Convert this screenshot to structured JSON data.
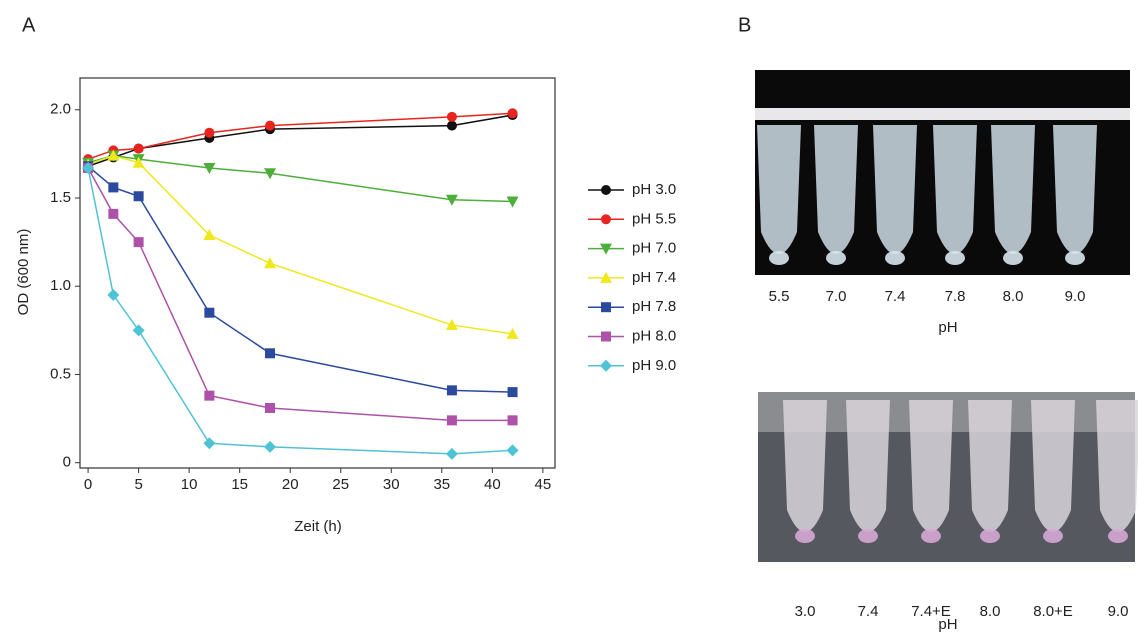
{
  "panel_labels": [
    "A",
    "B"
  ],
  "chart_data": {
    "type": "line",
    "x_label": "Zeit (h)",
    "y_label": "OD (600 nm)",
    "x": [
      0,
      2.5,
      5,
      12,
      18,
      36,
      42
    ],
    "xlim": [
      -0.8,
      46.2
    ],
    "xticks": [
      0,
      5,
      10,
      15,
      20,
      25,
      30,
      35,
      40,
      45
    ],
    "ylim": [
      -0.03,
      2.18
    ],
    "yticks": [
      0,
      0.5,
      {
        "value": 1,
        "label": "1.0"
      },
      1.5,
      {
        "value": 2,
        "label": "2.0"
      }
    ],
    "legend": "right",
    "series": [
      {
        "name": "pH 3.0",
        "color": "#111111",
        "marker": "circle",
        "values": [
          1.68,
          1.73,
          1.78,
          1.84,
          1.89,
          1.91,
          1.97
        ]
      },
      {
        "name": "pH 5.5",
        "color": "#e8241f",
        "marker": "circle",
        "values": [
          1.72,
          1.77,
          1.78,
          1.87,
          1.91,
          1.96,
          1.98
        ]
      },
      {
        "name": "pH 7.0",
        "color": "#4daf3a",
        "marker": "triangle-down",
        "values": [
          1.7,
          1.74,
          1.72,
          1.67,
          1.64,
          1.49,
          1.48
        ]
      },
      {
        "name": "pH 7.4",
        "color": "#f0e81c",
        "marker": "triangle-up",
        "values": [
          1.69,
          1.74,
          1.7,
          1.29,
          1.13,
          0.78,
          0.73
        ]
      },
      {
        "name": "pH 7.8",
        "color": "#2b4a9e",
        "marker": "square",
        "values": [
          1.68,
          1.56,
          1.51,
          0.85,
          0.62,
          0.41,
          0.4
        ]
      },
      {
        "name": "pH 8.0",
        "color": "#ad52a8",
        "marker": "square",
        "values": [
          1.67,
          1.41,
          1.25,
          0.38,
          0.31,
          0.24,
          0.24
        ]
      },
      {
        "name": "pH 9.0",
        "color": "#4fc3d6",
        "marker": "diamond",
        "values": [
          1.67,
          0.95,
          0.75,
          0.11,
          0.09,
          0.05,
          0.07
        ]
      }
    ]
  },
  "photos": [
    {
      "labels": [
        "5.5",
        "7.0",
        "7.4",
        "7.8",
        "8.0",
        "9.0"
      ],
      "axis_label": "pH"
    },
    {
      "labels": [
        "3.0",
        "7.4",
        "7.4+E",
        "8.0",
        "8.0+E",
        "9.0"
      ],
      "axis_label": "pH"
    }
  ]
}
